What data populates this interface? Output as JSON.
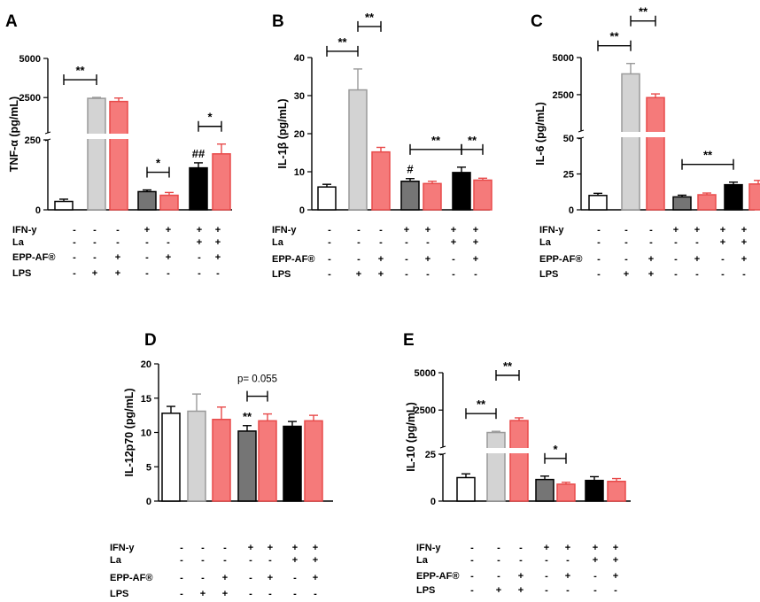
{
  "colors": [
    "#ffffff",
    "#d3d3d3",
    "#f57a7a",
    "#757575",
    "#f57a7a",
    "#000000",
    "#f57a7a"
  ],
  "edge_colors": [
    "#000000",
    "#9a9a9a",
    "#e84a4a",
    "#000000",
    "#e84a4a",
    "#000000",
    "#e84a4a"
  ],
  "condition_labels": [
    "IFN-y",
    "La",
    "EPP-AF®",
    "LPS"
  ],
  "conditions": {
    "IFN-y": [
      "-",
      "-",
      "-",
      "+",
      "+",
      "+",
      "+"
    ],
    "La": [
      "-",
      "-",
      "-",
      "-",
      "-",
      "+",
      "+"
    ],
    "EPP-AF®": [
      "-",
      "-",
      "+",
      "-",
      "+",
      "-",
      "+"
    ],
    "LPS": [
      "-",
      "+",
      "+",
      "-",
      "-",
      "-",
      "-"
    ]
  },
  "chart_data": [
    {
      "panel": "A",
      "type": "bar",
      "ylabel": "TNF-α (pg/mL)",
      "values": [
        30,
        2450,
        2250,
        65,
        52,
        150,
        200
      ],
      "errors": [
        8,
        60,
        220,
        6,
        10,
        18,
        35
      ],
      "axis_lower": [
        0,
        250
      ],
      "axis_upper": [
        250,
        5000
      ],
      "ticks_lower": [
        "250",
        "0"
      ],
      "ticks_upper": [
        "5000",
        "2500"
      ],
      "brackets": [
        {
          "from": 0,
          "to": 1,
          "label": "**"
        },
        {
          "from": 3,
          "to": 4,
          "label": "*"
        },
        {
          "from": 5,
          "to": 6,
          "label": "*"
        }
      ],
      "bar_marks": [
        {
          "bar": 5,
          "label": "##"
        }
      ]
    },
    {
      "panel": "B",
      "type": "bar",
      "ylabel": "IL-1β (pg/mL)",
      "values": [
        6,
        31.5,
        15.2,
        7.5,
        6.9,
        9.8,
        7.8
      ],
      "errors": [
        0.7,
        5.5,
        1.2,
        0.7,
        0.6,
        1.4,
        0.5
      ],
      "ylim": [
        0,
        40
      ],
      "ticks": [
        "0",
        "10",
        "20",
        "30",
        "40"
      ],
      "brackets": [
        {
          "from": 0,
          "to": 1,
          "label": "**"
        },
        {
          "from": 1,
          "to": 2,
          "label": "**"
        },
        {
          "from": 3,
          "to": 5,
          "label": "**"
        },
        {
          "from": 5,
          "to": 6,
          "label": "**"
        }
      ],
      "bar_marks": [
        {
          "bar": 3,
          "label": "#"
        }
      ]
    },
    {
      "panel": "C",
      "type": "bar",
      "ylabel": "IL-6 (pg/mL)",
      "values": [
        10,
        3900,
        2300,
        9,
        10.5,
        17.5,
        18
      ],
      "errors": [
        1.5,
        700,
        250,
        1.2,
        1.2,
        1.8,
        2.5
      ],
      "axis_lower": [
        0,
        50
      ],
      "axis_upper": [
        50,
        5000
      ],
      "ticks_lower": [
        "50",
        "25",
        "0"
      ],
      "ticks_upper": [
        "5000",
        "2500"
      ],
      "brackets": [
        {
          "from": 0,
          "to": 1,
          "label": "**"
        },
        {
          "from": 1,
          "to": 2,
          "label": "**"
        },
        {
          "from": 3,
          "to": 5,
          "label": "**"
        }
      ],
      "bar_marks": []
    },
    {
      "panel": "D",
      "type": "bar",
      "ylabel": "IL-12p70 (pg/mL)",
      "values": [
        12.8,
        13.1,
        11.9,
        10.2,
        11.7,
        10.9,
        11.7
      ],
      "errors": [
        1.0,
        2.5,
        1.8,
        0.8,
        1.0,
        0.7,
        0.8
      ],
      "ylim": [
        0,
        20
      ],
      "ticks": [
        "0",
        "5",
        "10",
        "15",
        "20"
      ],
      "brackets": [
        {
          "from": 3,
          "to": 4,
          "label": "p= 0.055"
        }
      ],
      "bar_marks": [
        {
          "bar": 3,
          "label": "**"
        }
      ]
    },
    {
      "panel": "E",
      "type": "bar",
      "ylabel": "IL-10 (pg/mL)",
      "values": [
        12.5,
        1000,
        1800,
        11.5,
        9,
        11,
        10.5
      ],
      "errors": [
        2,
        80,
        180,
        1.8,
        1,
        2,
        1.5
      ],
      "axis_lower": [
        0,
        25
      ],
      "axis_upper": [
        25,
        5000
      ],
      "ticks_lower": [
        "25",
        "0"
      ],
      "ticks_upper": [
        "5000",
        "2500"
      ],
      "brackets": [
        {
          "from": 0,
          "to": 1,
          "label": "**"
        },
        {
          "from": 1,
          "to": 2,
          "label": "**"
        },
        {
          "from": 3,
          "to": 4,
          "label": "*"
        }
      ],
      "bar_marks": []
    }
  ]
}
